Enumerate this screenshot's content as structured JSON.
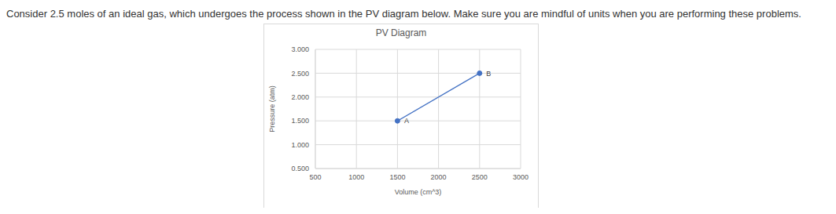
{
  "question": "Consider 2.5 moles of an ideal gas, which undergoes the process shown in the PV diagram below. Make sure you are mindful of units when you are performing these problems.",
  "chart_data": {
    "type": "line",
    "title": "PV Diagram",
    "x_label": "Volume (cm^3)",
    "y_label": "Pressure (atm)",
    "x": [
      1500,
      2500
    ],
    "values": [
      1.5,
      2.5
    ],
    "point_labels": [
      "A",
      "B"
    ],
    "color": "#4472c4",
    "marker": "circle",
    "xlim": [
      500,
      3000
    ],
    "xticks": [
      500,
      1000,
      1500,
      2000,
      2500,
      3000
    ],
    "ylim": [
      0.5,
      3.0
    ],
    "yticks": [
      {
        "value": 0.5,
        "label": "0.500"
      },
      {
        "value": 1.0,
        "label": "1.000"
      },
      {
        "value": 1.5,
        "label": "1.500"
      },
      {
        "value": 2.0,
        "label": "2.000"
      },
      {
        "value": 2.5,
        "label": "2.500"
      },
      {
        "value": 3.0,
        "label": "3.000"
      }
    ],
    "grid": true
  }
}
